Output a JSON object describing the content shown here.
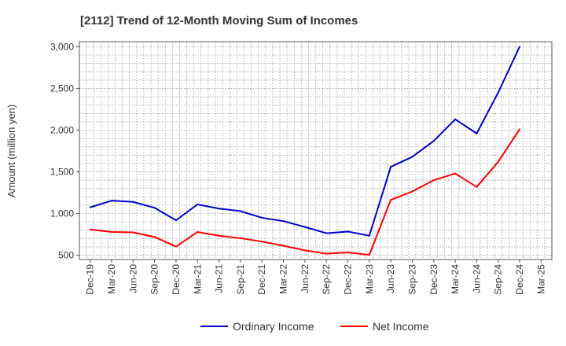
{
  "chart_data": {
    "type": "line",
    "title": "[2112]  Trend of 12-Month Moving Sum of Incomes",
    "xlabel": "",
    "ylabel": "Amount (million yen)",
    "ylim": [
      450,
      3060
    ],
    "yticks": [
      500,
      1000,
      1500,
      2000,
      2500,
      3000
    ],
    "ytick_labels": [
      "500",
      "1,000",
      "1,500",
      "2,000",
      "2,500",
      "3,000"
    ],
    "x_tick_labels": [
      "Dec-19",
      "Mar-20",
      "Jun-20",
      "Sep-20",
      "Dec-20",
      "Mar-21",
      "Jun-21",
      "Sep-21",
      "Dec-21",
      "Mar-22",
      "Jun-22",
      "Sep-22",
      "Dec-22",
      "Mar-23",
      "Jun-23",
      "Sep-23",
      "Dec-23",
      "Mar-24",
      "Jun-24",
      "Sep-24",
      "Dec-24",
      "Mar-25"
    ],
    "grid": true,
    "legend_position": "bottom-center",
    "series": [
      {
        "name": "Ordinary Income",
        "color": "#0000cc",
        "values": [
          1075,
          1155,
          1140,
          1070,
          920,
          1110,
          1060,
          1030,
          950,
          910,
          840,
          765,
          785,
          735,
          1560,
          1680,
          1870,
          2130,
          1960,
          2450,
          3000
        ]
      },
      {
        "name": "Net Income",
        "color": "#ff0000",
        "values": [
          810,
          780,
          775,
          720,
          605,
          780,
          735,
          705,
          665,
          615,
          560,
          520,
          535,
          505,
          1165,
          1265,
          1400,
          1480,
          1320,
          1620,
          2010
        ]
      }
    ]
  }
}
